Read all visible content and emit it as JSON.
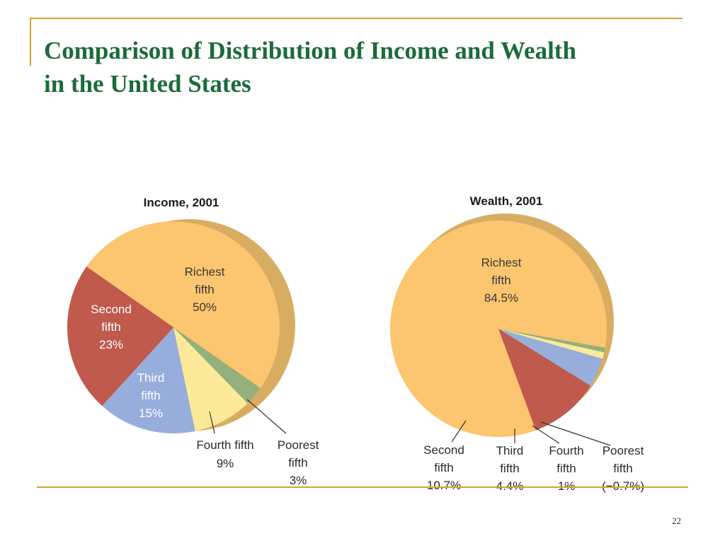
{
  "slide": {
    "title_line1": "Comparison of Distribution of Income and Wealth",
    "title_line2": "in the United States",
    "page_number": "22"
  },
  "colors": {
    "richest": "#fcc56f",
    "second": "#bf5a4d",
    "third": "#97aedc",
    "fourth": "#fdea99",
    "poorest": "#93b07d",
    "shadow": "#d8ad62",
    "title": "#1c6b3a",
    "rule": "#d4a52a"
  },
  "chart_data": [
    {
      "type": "pie",
      "title": "Income, 2001",
      "slices": [
        {
          "key": "richest",
          "label_lines": [
            "Richest",
            "fifth",
            "50%"
          ],
          "value": 50
        },
        {
          "key": "second",
          "label_lines": [
            "Second",
            "fifth",
            "23%"
          ],
          "value": 23
        },
        {
          "key": "third",
          "label_lines": [
            "Third",
            "fifth",
            "15%"
          ],
          "value": 15
        },
        {
          "key": "fourth",
          "label_lines": [
            "Fourth fifth",
            "9%"
          ],
          "value": 9
        },
        {
          "key": "poorest",
          "label_lines": [
            "Poorest",
            "fifth",
            "3%"
          ],
          "value": 3
        }
      ]
    },
    {
      "type": "pie",
      "title": "Wealth, 2001",
      "slices": [
        {
          "key": "richest",
          "label_lines": [
            "Richest",
            "fifth",
            "84.5%"
          ],
          "value": 84.5
        },
        {
          "key": "second",
          "label_lines": [
            "Second",
            "fifth",
            "10.7%"
          ],
          "value": 10.7
        },
        {
          "key": "third",
          "label_lines": [
            "Third",
            "fifth",
            "4.4%"
          ],
          "value": 4.4
        },
        {
          "key": "fourth",
          "label_lines": [
            "Fourth",
            "fifth",
            "1%"
          ],
          "value": 1
        },
        {
          "key": "poorest",
          "label_lines": [
            "Poorest",
            "fifth",
            "(−0.7%)"
          ],
          "value": -0.7
        }
      ]
    }
  ]
}
